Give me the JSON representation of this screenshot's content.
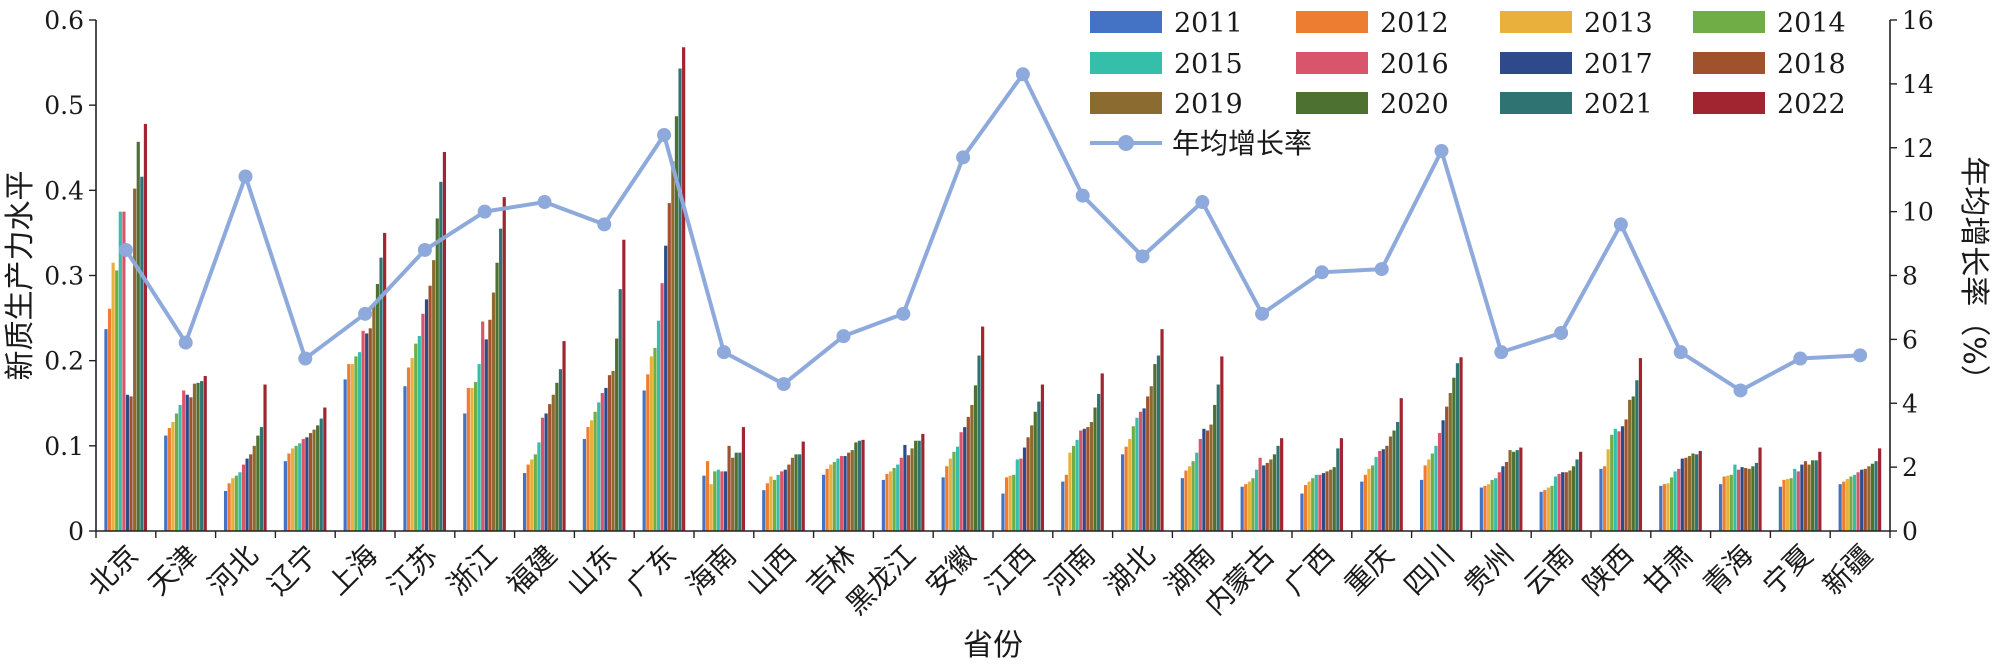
{
  "chart_data": {
    "type": "bar",
    "xlabel": "省份",
    "ylabel": "新质生产力水平",
    "y2label": "年均增长率（%）",
    "ylim": [
      0,
      0.6
    ],
    "y2lim": [
      0,
      16
    ],
    "yticks": [
      "0",
      "0.1",
      "0.2",
      "0.3",
      "0.4",
      "0.5",
      "0.6"
    ],
    "y2ticks": [
      "0",
      "2",
      "4",
      "6",
      "8",
      "10",
      "12",
      "14",
      "16"
    ],
    "legend_position": "top-right",
    "categories": [
      "北京",
      "天津",
      "河北",
      "辽宁",
      "上海",
      "江苏",
      "浙江",
      "福建",
      "山东",
      "广东",
      "海南",
      "山西",
      "吉林",
      "黑龙江",
      "安徽",
      "江西",
      "河南",
      "湖北",
      "湖南",
      "内蒙古",
      "广西",
      "重庆",
      "四川",
      "贵州",
      "云南",
      "陕西",
      "甘肃",
      "青海",
      "宁夏",
      "新疆"
    ],
    "series": [
      {
        "name": "2011",
        "color": "#4472C4",
        "values": [
          0.237,
          0.112,
          0.047,
          0.082,
          0.178,
          0.17,
          0.138,
          0.068,
          0.108,
          0.165,
          0.065,
          0.048,
          0.066,
          0.06,
          0.063,
          0.044,
          0.058,
          0.09,
          0.062,
          0.052,
          0.044,
          0.058,
          0.06,
          0.051,
          0.046,
          0.073,
          0.053,
          0.055,
          0.052,
          0.055
        ]
      },
      {
        "name": "2012",
        "color": "#ED7D31",
        "values": [
          0.261,
          0.121,
          0.056,
          0.091,
          0.196,
          0.192,
          0.168,
          0.078,
          0.122,
          0.184,
          0.082,
          0.056,
          0.073,
          0.067,
          0.076,
          0.063,
          0.066,
          0.099,
          0.071,
          0.055,
          0.054,
          0.066,
          0.077,
          0.053,
          0.048,
          0.076,
          0.055,
          0.064,
          0.06,
          0.058
        ]
      },
      {
        "name": "2013",
        "color": "#E9B13B",
        "values": [
          0.315,
          0.128,
          0.062,
          0.097,
          0.196,
          0.203,
          0.168,
          0.084,
          0.13,
          0.205,
          0.055,
          0.064,
          0.078,
          0.07,
          0.085,
          0.065,
          0.092,
          0.108,
          0.076,
          0.058,
          0.058,
          0.073,
          0.084,
          0.055,
          0.051,
          0.096,
          0.056,
          0.065,
          0.061,
          0.061
        ]
      },
      {
        "name": "2014",
        "color": "#70AD47",
        "values": [
          0.306,
          0.138,
          0.065,
          0.1,
          0.205,
          0.22,
          0.175,
          0.09,
          0.14,
          0.215,
          0.07,
          0.06,
          0.081,
          0.074,
          0.093,
          0.066,
          0.1,
          0.123,
          0.082,
          0.062,
          0.062,
          0.077,
          0.091,
          0.06,
          0.053,
          0.113,
          0.063,
          0.066,
          0.062,
          0.064
        ]
      },
      {
        "name": "2015",
        "color": "#35BFAB",
        "values": [
          0.375,
          0.148,
          0.069,
          0.103,
          0.21,
          0.229,
          0.196,
          0.104,
          0.151,
          0.247,
          0.072,
          0.066,
          0.085,
          0.078,
          0.099,
          0.084,
          0.107,
          0.133,
          0.092,
          0.072,
          0.066,
          0.087,
          0.1,
          0.062,
          0.064,
          0.12,
          0.07,
          0.078,
          0.073,
          0.066
        ]
      },
      {
        "name": "2016",
        "color": "#D9556B",
        "values": [
          0.375,
          0.165,
          0.078,
          0.108,
          0.235,
          0.255,
          0.246,
          0.133,
          0.162,
          0.291,
          0.07,
          0.07,
          0.088,
          0.086,
          0.116,
          0.085,
          0.118,
          0.14,
          0.108,
          0.086,
          0.066,
          0.094,
          0.115,
          0.069,
          0.067,
          0.117,
          0.073,
          0.072,
          0.07,
          0.069
        ]
      },
      {
        "name": "2017",
        "color": "#2E4A8B",
        "values": [
          0.16,
          0.16,
          0.085,
          0.11,
          0.232,
          0.272,
          0.225,
          0.138,
          0.168,
          0.335,
          0.07,
          0.072,
          0.088,
          0.101,
          0.122,
          0.098,
          0.12,
          0.144,
          0.12,
          0.077,
          0.068,
          0.096,
          0.13,
          0.076,
          0.069,
          0.123,
          0.085,
          0.075,
          0.078,
          0.072
        ]
      },
      {
        "name": "2018",
        "color": "#A0522D",
        "values": [
          0.158,
          0.157,
          0.09,
          0.115,
          0.238,
          0.288,
          0.248,
          0.149,
          0.183,
          0.385,
          0.1,
          0.078,
          0.092,
          0.089,
          0.134,
          0.11,
          0.122,
          0.158,
          0.118,
          0.08,
          0.07,
          0.1,
          0.146,
          0.081,
          0.069,
          0.131,
          0.086,
          0.074,
          0.082,
          0.073
        ]
      },
      {
        "name": "2019",
        "color": "#8B6B2F",
        "values": [
          0.402,
          0.173,
          0.1,
          0.119,
          0.266,
          0.318,
          0.28,
          0.16,
          0.188,
          0.434,
          0.086,
          0.086,
          0.095,
          0.097,
          0.148,
          0.124,
          0.128,
          0.17,
          0.125,
          0.084,
          0.072,
          0.111,
          0.162,
          0.095,
          0.071,
          0.154,
          0.088,
          0.073,
          0.078,
          0.076
        ]
      },
      {
        "name": "2020",
        "color": "#4C7131",
        "values": [
          0.457,
          0.174,
          0.112,
          0.124,
          0.29,
          0.367,
          0.315,
          0.174,
          0.226,
          0.487,
          0.092,
          0.09,
          0.104,
          0.106,
          0.171,
          0.14,
          0.145,
          0.196,
          0.148,
          0.09,
          0.075,
          0.118,
          0.18,
          0.093,
          0.076,
          0.158,
          0.091,
          0.076,
          0.083,
          0.079
        ]
      },
      {
        "name": "2021",
        "color": "#2F7373",
        "values": [
          0.416,
          0.176,
          0.122,
          0.132,
          0.321,
          0.41,
          0.355,
          0.19,
          0.284,
          0.543,
          0.092,
          0.09,
          0.106,
          0.106,
          0.206,
          0.152,
          0.161,
          0.206,
          0.172,
          0.1,
          0.097,
          0.128,
          0.197,
          0.095,
          0.084,
          0.177,
          0.09,
          0.08,
          0.083,
          0.082
        ]
      },
      {
        "name": "2022",
        "color": "#A12530",
        "values": [
          0.478,
          0.182,
          0.172,
          0.145,
          0.35,
          0.445,
          0.392,
          0.223,
          0.342,
          0.568,
          0.122,
          0.105,
          0.107,
          0.114,
          0.24,
          0.172,
          0.185,
          0.237,
          0.205,
          0.109,
          0.109,
          0.156,
          0.204,
          0.098,
          0.093,
          0.203,
          0.094,
          0.098,
          0.093,
          0.097
        ]
      }
    ],
    "line": {
      "name": "年均增长率",
      "color": "#8EA9DB",
      "axis": "right",
      "values": [
        8.8,
        5.9,
        11.1,
        5.4,
        6.8,
        8.8,
        10.0,
        10.3,
        9.6,
        12.4,
        5.6,
        4.6,
        6.1,
        6.8,
        11.7,
        14.3,
        10.5,
        8.6,
        10.3,
        6.8,
        8.1,
        8.2,
        11.9,
        5.6,
        6.2,
        9.6,
        5.6,
        4.4,
        5.4,
        5.5
      ]
    }
  }
}
